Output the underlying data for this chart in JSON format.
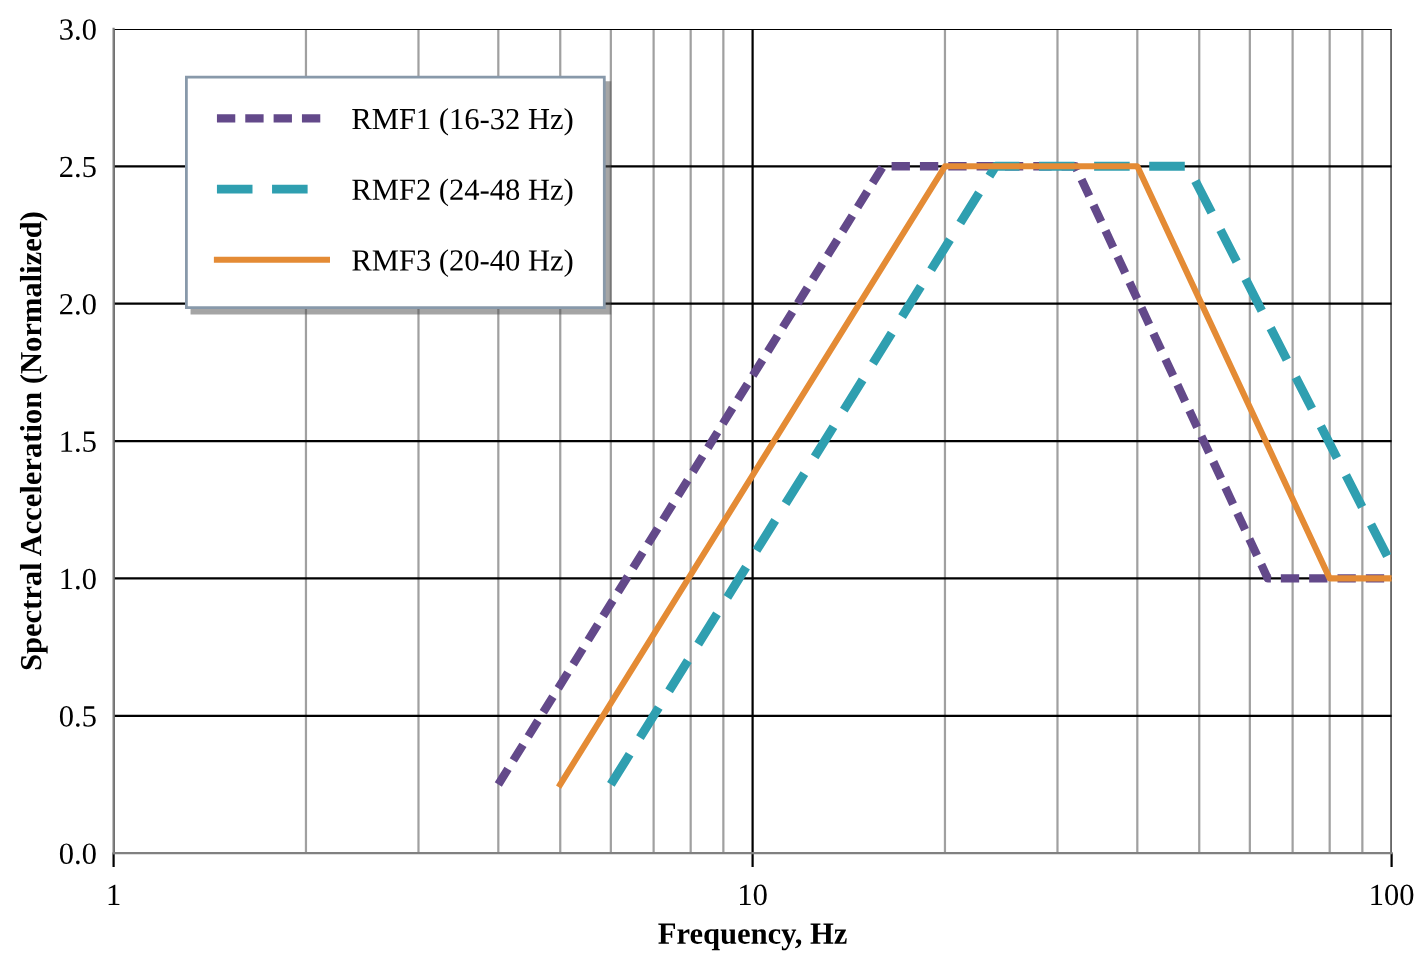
{
  "chart_data": {
    "type": "line",
    "xlabel": "Frequency, Hz",
    "ylabel": "Spectral Acceleration (Normalized)",
    "log": "x",
    "xlim": [
      1,
      100
    ],
    "xticks": [
      1,
      10,
      100
    ],
    "ylim": [
      0,
      3
    ],
    "yticks": [
      {
        "value": 0,
        "label": "0.0"
      },
      {
        "value": 0.5,
        "label": "0.5"
      },
      {
        "value": 1,
        "label": "1.0"
      },
      {
        "value": 1.5,
        "label": "1.5"
      },
      {
        "value": 2,
        "label": "2.0"
      },
      {
        "value": 2.5,
        "label": "2.5"
      },
      {
        "value": 3,
        "label": "3.0"
      }
    ],
    "grid": true,
    "legend": "top left",
    "series": [
      {
        "name": "RMF1 (16-32 Hz)",
        "color": "#63498a",
        "line_style": "dotted",
        "x": [
          4,
          16,
          32,
          64,
          100
        ],
        "values": [
          0.25,
          2.5,
          2.5,
          1.0,
          1.0
        ]
      },
      {
        "name": "RMF2 (24-48 Hz)",
        "color": "#2f9fb0",
        "line_style": "dashed",
        "x": [
          6,
          24,
          48,
          100
        ],
        "values": [
          0.25,
          2.5,
          2.5,
          1.05
        ]
      },
      {
        "name": "RMF3 (20-40 Hz)",
        "color": "#e48b35",
        "line_style": "solid",
        "x": [
          5,
          20,
          40,
          80,
          100
        ],
        "values": [
          0.25,
          2.5,
          2.5,
          1.0,
          1.0
        ]
      }
    ]
  }
}
